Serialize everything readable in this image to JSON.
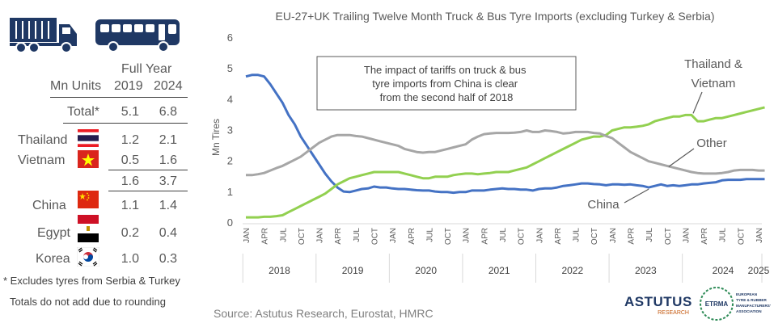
{
  "left_table": {
    "header_group": "Full Year",
    "header_units": "Mn Units",
    "header_year1": "2019",
    "header_year2": "2024",
    "total": {
      "label": "Total*",
      "v2019": "5.1",
      "v2024": "6.8"
    },
    "rows": [
      {
        "label": "Thailand",
        "v2019": "1.2",
        "v2024": "2.1",
        "flag": "thailand"
      },
      {
        "label": "Vietnam",
        "v2019": "0.5",
        "v2024": "1.6",
        "flag": "vietnam"
      },
      {
        "label": "",
        "v2019": "1.6",
        "v2024": "3.7",
        "flag": ""
      },
      {
        "label": "China",
        "v2019": "1.1",
        "v2024": "1.4",
        "flag": "china"
      },
      {
        "label": "Egypt",
        "v2019": "0.2",
        "v2024": "0.4",
        "flag": "egypt"
      },
      {
        "label": "Korea",
        "v2019": "1.0",
        "v2024": "0.3",
        "flag": "korea"
      }
    ],
    "note1": "* Excludes tyres from Serbia & Turkey",
    "note2": "Totals do not add due to rounding"
  },
  "icons": {
    "truck": "truck-icon",
    "bus": "bus-icon",
    "icon_color": "#1f3864"
  },
  "source": "Source: Astutus Research, Eurostat, HMRC",
  "logos": {
    "astutus": "ASTUTUS",
    "astutus_sub": "RESEARCH",
    "etrma": "ETRMA",
    "etrma_sub": [
      "EUROPEAN",
      "TYRE & RUBBER",
      "MANUFACTURERS'",
      "ASSOCIATION"
    ]
  },
  "chart_data": {
    "type": "line",
    "title": "EU-27+UK Trailing Twelve Month Truck & Bus Tyre Imports (excluding Turkey & Serbia)",
    "ylabel": "Mn Tires",
    "xlabel": "",
    "ylim": [
      0,
      6
    ],
    "yticks": [
      "0",
      "1",
      "2",
      "3",
      "4",
      "5",
      "6"
    ],
    "month_ticks": [
      "JAN",
      "APR",
      "JUL",
      "OCT",
      "JAN",
      "APR",
      "JUL",
      "OCT",
      "JAN",
      "APR",
      "JUL",
      "OCT",
      "JAN",
      "APR",
      "JUL",
      "OCT",
      "JAN",
      "APR",
      "JUL",
      "OCT",
      "JAN",
      "APR",
      "JUL",
      "OCT",
      "JAN",
      "APR",
      "JUL",
      "OCT",
      "JAN"
    ],
    "year_labels": [
      "2018",
      "2019",
      "2020",
      "2021",
      "2022",
      "2023",
      "2024",
      "2025"
    ],
    "annotation_box": "The impact of tariffs on truck & bus tyre imports from China is clear from the second half of 2018",
    "series": [
      {
        "name": "China",
        "label": "China",
        "color": "#4472c4",
        "values": [
          4.75,
          4.8,
          4.8,
          4.75,
          4.5,
          4.2,
          3.9,
          3.5,
          3.2,
          2.8,
          2.5,
          2.2,
          1.9,
          1.6,
          1.35,
          1.15,
          1.02,
          1.0,
          1.05,
          1.1,
          1.12,
          1.18,
          1.15,
          1.15,
          1.12,
          1.1,
          1.1,
          1.08,
          1.06,
          1.05,
          1.05,
          1.02,
          1.0,
          1.0,
          0.98,
          1.0,
          1.0,
          1.05,
          1.05,
          1.05,
          1.08,
          1.1,
          1.12,
          1.1,
          1.1,
          1.08,
          1.08,
          1.05,
          1.1,
          1.12,
          1.12,
          1.15,
          1.2,
          1.22,
          1.25,
          1.28,
          1.28,
          1.26,
          1.25,
          1.22,
          1.25,
          1.25,
          1.24,
          1.25,
          1.22,
          1.2,
          1.15,
          1.2,
          1.25,
          1.2,
          1.22,
          1.2,
          1.22,
          1.25,
          1.25,
          1.28,
          1.3,
          1.32,
          1.38,
          1.4,
          1.4,
          1.4,
          1.42,
          1.42,
          1.42,
          1.42
        ]
      },
      {
        "name": "Thailand & Vietnam",
        "label": "Thailand & Vietnam",
        "label_lines": [
          "Thailand &",
          "Vietnam"
        ],
        "color": "#92d050",
        "values": [
          0.18,
          0.18,
          0.18,
          0.2,
          0.2,
          0.22,
          0.25,
          0.35,
          0.45,
          0.55,
          0.65,
          0.75,
          0.85,
          0.95,
          1.1,
          1.25,
          1.35,
          1.45,
          1.5,
          1.55,
          1.6,
          1.65,
          1.65,
          1.65,
          1.65,
          1.65,
          1.6,
          1.55,
          1.5,
          1.45,
          1.45,
          1.5,
          1.5,
          1.5,
          1.55,
          1.58,
          1.6,
          1.6,
          1.58,
          1.6,
          1.62,
          1.65,
          1.65,
          1.65,
          1.7,
          1.75,
          1.8,
          1.9,
          2.0,
          2.1,
          2.2,
          2.3,
          2.4,
          2.5,
          2.6,
          2.7,
          2.75,
          2.8,
          2.8,
          2.85,
          3.0,
          3.05,
          3.1,
          3.1,
          3.12,
          3.15,
          3.2,
          3.3,
          3.35,
          3.4,
          3.45,
          3.45,
          3.5,
          3.5,
          3.3,
          3.3,
          3.35,
          3.4,
          3.4,
          3.45,
          3.5,
          3.55,
          3.6,
          3.65,
          3.7,
          3.75
        ]
      },
      {
        "name": "Other",
        "label": "Other",
        "color": "#a6a6a6",
        "values": [
          1.55,
          1.55,
          1.58,
          1.62,
          1.7,
          1.78,
          1.85,
          1.95,
          2.05,
          2.15,
          2.3,
          2.45,
          2.6,
          2.7,
          2.8,
          2.85,
          2.85,
          2.85,
          2.82,
          2.8,
          2.75,
          2.7,
          2.65,
          2.6,
          2.55,
          2.5,
          2.4,
          2.35,
          2.3,
          2.28,
          2.3,
          2.3,
          2.35,
          2.4,
          2.45,
          2.5,
          2.55,
          2.7,
          2.8,
          2.88,
          2.9,
          2.92,
          2.92,
          2.92,
          2.93,
          2.95,
          3.0,
          2.95,
          2.95,
          3.0,
          2.98,
          2.95,
          2.9,
          2.92,
          2.95,
          2.95,
          2.95,
          2.92,
          2.9,
          2.82,
          2.75,
          2.6,
          2.45,
          2.3,
          2.2,
          2.1,
          2.0,
          1.95,
          1.9,
          1.85,
          1.8,
          1.75,
          1.7,
          1.65,
          1.62,
          1.6,
          1.6,
          1.6,
          1.62,
          1.65,
          1.7,
          1.72,
          1.72,
          1.72,
          1.7,
          1.7
        ]
      }
    ]
  }
}
